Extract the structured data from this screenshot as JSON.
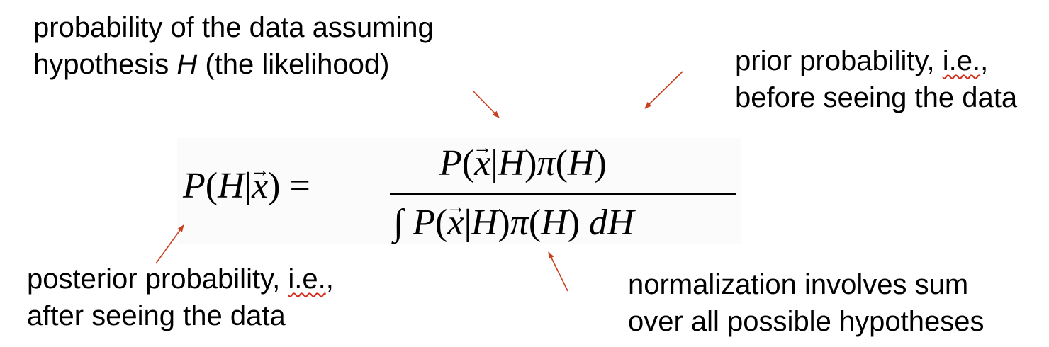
{
  "annotations": {
    "likelihood": {
      "line1": "probability of the data assuming",
      "line2_pre": "hypothesis ",
      "line2_var": "H",
      "line2_post": " (the likelihood)"
    },
    "prior": {
      "line1_pre": "prior probability, ",
      "line1_abbr": "i.e.",
      "line1_post": ",",
      "line2": "before seeing the data"
    },
    "posterior": {
      "line1_pre": "posterior probability, ",
      "line1_abbr": "i.e.",
      "line1_post": ",",
      "line2": "after seeing the data"
    },
    "normalization": {
      "line1": "normalization involves sum",
      "line2": "over all possible hypotheses"
    }
  },
  "formula": {
    "lhs": {
      "p": "P",
      "open": "(",
      "h": "H",
      "bar": "|",
      "x": "x",
      "close": ")",
      "eq": " = "
    },
    "numerator": {
      "p": "P",
      "open": "(",
      "x": "x",
      "bar": "|",
      "h": "H",
      "mid": ")",
      "pi": "π",
      "open2": "(",
      "h2": "H",
      "close": ")"
    },
    "denominator": {
      "int": "∫ ",
      "p": "P",
      "open": "(",
      "x": "x",
      "bar": "|",
      "h": "H",
      "mid": ")",
      "pi": "π",
      "open2": "(",
      "h2": "H",
      "close": ") ",
      "d": "dH"
    }
  },
  "colors": {
    "arrow": "#c8401e",
    "squiggle": "#d42a1a",
    "text": "#000000"
  }
}
